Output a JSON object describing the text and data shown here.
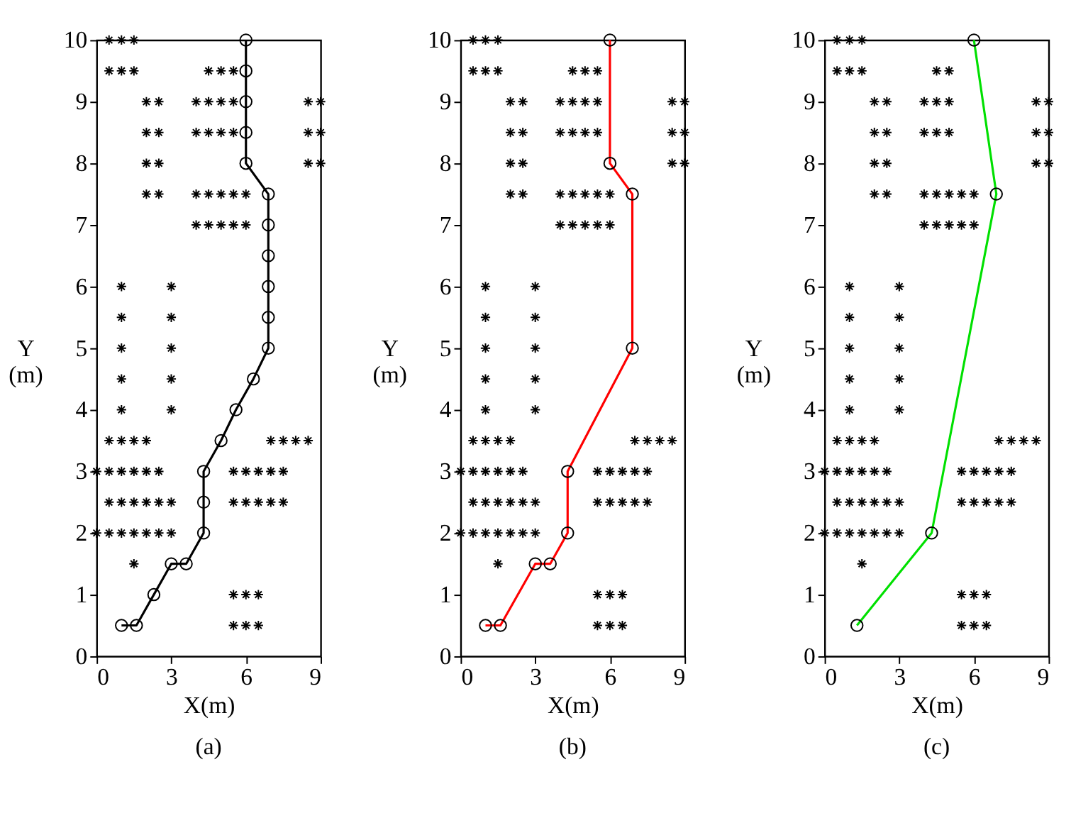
{
  "chart_data": [
    {
      "type": "scatter",
      "xlabel": "X(m)",
      "ylabel": "Y\n(m)",
      "annotations": [
        "(a)"
      ],
      "xlim": [
        0,
        9
      ],
      "ylim": [
        0,
        10
      ],
      "xticks": [
        0,
        3,
        6,
        9
      ],
      "yticks": [
        0,
        1,
        2,
        3,
        4,
        5,
        6,
        7,
        8,
        9,
        10
      ],
      "grid": false,
      "series": [
        {
          "marker": "cross",
          "color": "#000000",
          "x": [
            0.5,
            1,
            1.5,
            0.5,
            1,
            1.5,
            4.5,
            5,
            5.5,
            2,
            2.5,
            4,
            4.5,
            5,
            5.5,
            8.5,
            9,
            2,
            2.5,
            4,
            4.5,
            5,
            5.5,
            8.5,
            9,
            2,
            2.5,
            8.5,
            9,
            2,
            2.5,
            4,
            4.5,
            5,
            5.5,
            6,
            4,
            4.5,
            5,
            5.5,
            6,
            1,
            3,
            1,
            3,
            1,
            3,
            1,
            3,
            1,
            3,
            0.5,
            1,
            1.5,
            2,
            7,
            7.5,
            8,
            8.5,
            0,
            0.5,
            1,
            1.5,
            2,
            2.5,
            5.5,
            6,
            6.5,
            7,
            7.5,
            0.5,
            1,
            1.5,
            2,
            2.5,
            3,
            5.5,
            6,
            6.5,
            7,
            7.5,
            0,
            0.5,
            1,
            1.5,
            2,
            2.5,
            3,
            1.5,
            5.5,
            6,
            6.5,
            5.5,
            6,
            6.5
          ],
          "values": [
            10,
            10,
            10,
            9.5,
            9.5,
            9.5,
            9.5,
            9.5,
            9.5,
            9,
            9,
            9,
            9,
            9,
            9,
            9,
            9,
            8.5,
            8.5,
            8.5,
            8.5,
            8.5,
            8.5,
            8.5,
            8.5,
            8,
            8,
            8,
            8,
            7.5,
            7.5,
            7.5,
            7.5,
            7.5,
            7.5,
            7.5,
            7,
            7,
            7,
            7,
            7,
            6,
            6,
            5.5,
            5.5,
            5,
            5,
            4.5,
            4.5,
            4,
            4,
            3.5,
            3.5,
            3.5,
            3.5,
            3.5,
            3.5,
            3.5,
            3.5,
            3,
            3,
            3,
            3,
            3,
            3,
            3,
            3,
            3,
            3,
            3,
            2.5,
            2.5,
            2.5,
            2.5,
            2.5,
            2.5,
            2.5,
            2.5,
            2.5,
            2.5,
            2.5,
            2,
            2,
            2,
            2,
            2,
            2,
            2,
            1.5,
            1,
            1,
            1,
            0.5,
            0.5,
            0.5
          ]
        },
        {
          "type": "line",
          "marker": "circle",
          "color": "#000000",
          "x": [
            1,
            1.6,
            2.3,
            3,
            3.6,
            4.3,
            4.3,
            4.3,
            5,
            5.6,
            6.3,
            6.9,
            6.9,
            6.9,
            6.9,
            6.9,
            6.9,
            6,
            6,
            6,
            6,
            6
          ],
          "values": [
            0.5,
            0.5,
            1,
            1.5,
            1.5,
            2,
            2.5,
            3,
            3.5,
            4,
            4.5,
            5,
            5.5,
            6,
            6.5,
            7,
            7.5,
            8,
            8.5,
            9,
            9.5,
            10
          ]
        }
      ]
    },
    {
      "type": "scatter",
      "xlabel": "X(m)",
      "ylabel": "Y\n(m)",
      "annotations": [
        "(b)"
      ],
      "xlim": [
        0,
        9
      ],
      "ylim": [
        0,
        10
      ],
      "xticks": [
        0,
        3,
        6,
        9
      ],
      "yticks": [
        0,
        1,
        2,
        3,
        4,
        5,
        6,
        7,
        8,
        9,
        10
      ],
      "grid": false,
      "series": [
        {
          "marker": "cross",
          "color": "#000000",
          "x": [
            0.5,
            1,
            1.5,
            0.5,
            1,
            1.5,
            4.5,
            5,
            5.5,
            2,
            2.5,
            4,
            4.5,
            5,
            5.5,
            8.5,
            9,
            2,
            2.5,
            4,
            4.5,
            5,
            5.5,
            8.5,
            9,
            2,
            2.5,
            8.5,
            9,
            2,
            2.5,
            4,
            4.5,
            5,
            5.5,
            6,
            4,
            4.5,
            5,
            5.5,
            6,
            1,
            3,
            1,
            3,
            1,
            3,
            1,
            3,
            1,
            3,
            0.5,
            1,
            1.5,
            2,
            7,
            7.5,
            8,
            8.5,
            0,
            0.5,
            1,
            1.5,
            2,
            2.5,
            5.5,
            6,
            6.5,
            7,
            7.5,
            0.5,
            1,
            1.5,
            2,
            2.5,
            3,
            5.5,
            6,
            6.5,
            7,
            7.5,
            0,
            0.5,
            1,
            1.5,
            2,
            2.5,
            3,
            1.5,
            5.5,
            6,
            6.5,
            5.5,
            6,
            6.5
          ],
          "values": [
            10,
            10,
            10,
            9.5,
            9.5,
            9.5,
            9.5,
            9.5,
            9.5,
            9,
            9,
            9,
            9,
            9,
            9,
            9,
            9,
            8.5,
            8.5,
            8.5,
            8.5,
            8.5,
            8.5,
            8.5,
            8.5,
            8,
            8,
            8,
            8,
            7.5,
            7.5,
            7.5,
            7.5,
            7.5,
            7.5,
            7.5,
            7,
            7,
            7,
            7,
            7,
            6,
            6,
            5.5,
            5.5,
            5,
            5,
            4.5,
            4.5,
            4,
            4,
            3.5,
            3.5,
            3.5,
            3.5,
            3.5,
            3.5,
            3.5,
            3.5,
            3,
            3,
            3,
            3,
            3,
            3,
            3,
            3,
            3,
            3,
            3,
            2.5,
            2.5,
            2.5,
            2.5,
            2.5,
            2.5,
            2.5,
            2.5,
            2.5,
            2.5,
            2.5,
            2,
            2,
            2,
            2,
            2,
            2,
            2,
            1.5,
            1,
            1,
            1,
            0.5,
            0.5,
            0.5
          ]
        },
        {
          "type": "line",
          "marker": "circle",
          "color": "#ff0000",
          "x": [
            1,
            1.6,
            3,
            3.6,
            4.3,
            4.3,
            6.9,
            6.9,
            6,
            6
          ],
          "values": [
            0.5,
            0.5,
            1.5,
            1.5,
            2,
            3,
            5,
            7.5,
            8,
            10
          ]
        }
      ]
    },
    {
      "type": "scatter",
      "xlabel": "X(m)",
      "ylabel": "Y\n(m)",
      "annotations": [
        "(c)"
      ],
      "xlim": [
        0,
        9
      ],
      "ylim": [
        0,
        10
      ],
      "xticks": [
        0,
        3,
        6,
        9
      ],
      "yticks": [
        0,
        1,
        2,
        3,
        4,
        5,
        6,
        7,
        8,
        9,
        10
      ],
      "grid": false,
      "series": [
        {
          "marker": "cross",
          "color": "#000000",
          "x": [
            0.5,
            1,
            1.5,
            0.5,
            1,
            1.5,
            4.5,
            5,
            2,
            2.5,
            4,
            4.5,
            5,
            8.5,
            9,
            2,
            2.5,
            4,
            4.5,
            5,
            8.5,
            9,
            2,
            2.5,
            8.5,
            9,
            2,
            2.5,
            4,
            4.5,
            5,
            5.5,
            6,
            4,
            4.5,
            5,
            5.5,
            6,
            1,
            3,
            1,
            3,
            1,
            3,
            1,
            3,
            1,
            3,
            0.5,
            1,
            1.5,
            2,
            7,
            7.5,
            8,
            8.5,
            0,
            0.5,
            1,
            1.5,
            2,
            2.5,
            5.5,
            6,
            6.5,
            7,
            7.5,
            0.5,
            1,
            1.5,
            2,
            2.5,
            3,
            5.5,
            6,
            6.5,
            7,
            7.5,
            0,
            0.5,
            1,
            1.5,
            2,
            2.5,
            3,
            1.5,
            5.5,
            6,
            6.5,
            5.5,
            6,
            6.5
          ],
          "values": [
            10,
            10,
            10,
            9.5,
            9.5,
            9.5,
            9.5,
            9.5,
            9,
            9,
            9,
            9,
            9,
            9,
            9,
            8.5,
            8.5,
            8.5,
            8.5,
            8.5,
            8.5,
            8.5,
            8,
            8,
            8,
            8,
            7.5,
            7.5,
            7.5,
            7.5,
            7.5,
            7.5,
            7.5,
            7,
            7,
            7,
            7,
            7,
            6,
            6,
            5.5,
            5.5,
            5,
            5,
            4.5,
            4.5,
            4,
            4,
            3.5,
            3.5,
            3.5,
            3.5,
            3.5,
            3.5,
            3.5,
            3.5,
            3,
            3,
            3,
            3,
            3,
            3,
            3,
            3,
            3,
            3,
            3,
            2.5,
            2.5,
            2.5,
            2.5,
            2.5,
            2.5,
            2.5,
            2.5,
            2.5,
            2.5,
            2.5,
            2,
            2,
            2,
            2,
            2,
            2,
            2,
            1.5,
            1,
            1,
            1,
            0.5,
            0.5,
            0.5
          ]
        },
        {
          "type": "line",
          "marker": "circle",
          "color": "#00e000",
          "x": [
            1.3,
            4.3,
            6.9,
            6
          ],
          "values": [
            0.5,
            2,
            7.5,
            10
          ]
        }
      ]
    }
  ]
}
